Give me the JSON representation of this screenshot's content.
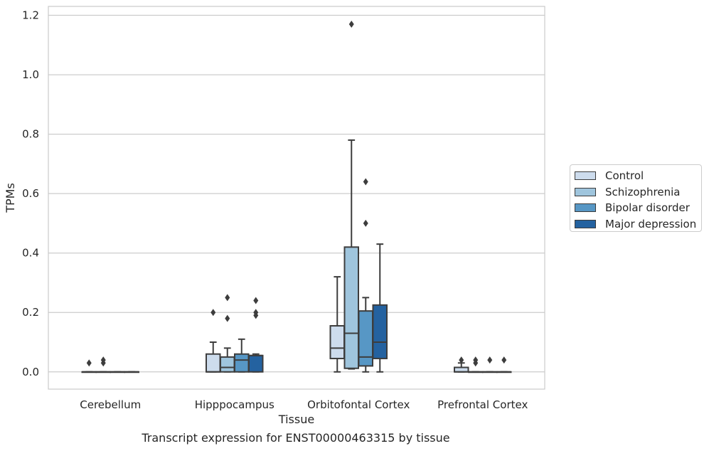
{
  "caption": "Transcript expression for ENST00000463315 by tissue",
  "chart_data": {
    "type": "box",
    "xlabel": "Tissue",
    "ylabel": "TPMs",
    "ylim": [
      -0.058,
      1.23
    ],
    "yticks": [
      0.0,
      0.2,
      0.4,
      0.6,
      0.8,
      1.0,
      1.2
    ],
    "ytick_labels": [
      "0.0",
      "0.2",
      "0.4",
      "0.6",
      "0.8",
      "1.0",
      "1.2"
    ],
    "grid": "horizontal",
    "legend_position": "right",
    "categories": [
      "Cerebellum",
      "Hipppocampus",
      "Orbitofontal Cortex",
      "Prefrontal Cortex"
    ],
    "series": [
      {
        "name": "Control",
        "color": "#cddced",
        "boxes": [
          {
            "q1": 0.0,
            "median": 0.0,
            "q3": 0.0,
            "whislo": 0.0,
            "whishi": 0.0,
            "fliers": [
              0.03
            ]
          },
          {
            "q1": 0.0,
            "median": 0.0,
            "q3": 0.06,
            "whislo": 0.0,
            "whishi": 0.1,
            "fliers": [
              0.2
            ]
          },
          {
            "q1": 0.045,
            "median": 0.08,
            "q3": 0.155,
            "whislo": 0.0,
            "whishi": 0.32,
            "fliers": []
          },
          {
            "q1": 0.0,
            "median": 0.0,
            "q3": 0.015,
            "whislo": 0.0,
            "whishi": 0.03,
            "fliers": [
              0.04
            ]
          }
        ]
      },
      {
        "name": "Schizophrenia",
        "color": "#9fc5dd",
        "boxes": [
          {
            "q1": 0.0,
            "median": 0.0,
            "q3": 0.0,
            "whislo": 0.0,
            "whishi": 0.0,
            "fliers": [
              0.03,
              0.04
            ]
          },
          {
            "q1": 0.0,
            "median": 0.015,
            "q3": 0.05,
            "whislo": 0.0,
            "whishi": 0.08,
            "fliers": [
              0.25,
              0.18
            ]
          },
          {
            "q1": 0.012,
            "median": 0.13,
            "q3": 0.42,
            "whislo": 0.01,
            "whishi": 0.78,
            "fliers": [
              1.17
            ]
          },
          {
            "q1": 0.0,
            "median": 0.0,
            "q3": 0.0,
            "whislo": 0.0,
            "whishi": 0.0,
            "fliers": [
              0.03,
              0.04
            ]
          }
        ]
      },
      {
        "name": "Bipolar disorder",
        "color": "#5797c5",
        "boxes": [
          {
            "q1": 0.0,
            "median": 0.0,
            "q3": 0.0,
            "whislo": 0.0,
            "whishi": 0.0,
            "fliers": []
          },
          {
            "q1": 0.0,
            "median": 0.04,
            "q3": 0.06,
            "whislo": 0.0,
            "whishi": 0.11,
            "fliers": []
          },
          {
            "q1": 0.02,
            "median": 0.05,
            "q3": 0.205,
            "whislo": 0.0,
            "whishi": 0.25,
            "fliers": [
              0.64,
              0.5
            ]
          },
          {
            "q1": 0.0,
            "median": 0.0,
            "q3": 0.0,
            "whislo": 0.0,
            "whishi": 0.0,
            "fliers": [
              0.04
            ]
          }
        ]
      },
      {
        "name": "Major depression",
        "color": "#2462a0",
        "boxes": [
          {
            "q1": 0.0,
            "median": 0.0,
            "q3": 0.0,
            "whislo": 0.0,
            "whishi": 0.0,
            "fliers": []
          },
          {
            "q1": 0.0,
            "median": 0.055,
            "q3": 0.055,
            "whislo": 0.0,
            "whishi": 0.06,
            "fliers": [
              0.24,
              0.2,
              0.19
            ]
          },
          {
            "q1": 0.045,
            "median": 0.1,
            "q3": 0.225,
            "whislo": 0.0,
            "whishi": 0.43,
            "fliers": []
          },
          {
            "q1": 0.0,
            "median": 0.0,
            "q3": 0.0,
            "whislo": 0.0,
            "whishi": 0.0,
            "fliers": [
              0.04
            ]
          }
        ]
      }
    ]
  }
}
